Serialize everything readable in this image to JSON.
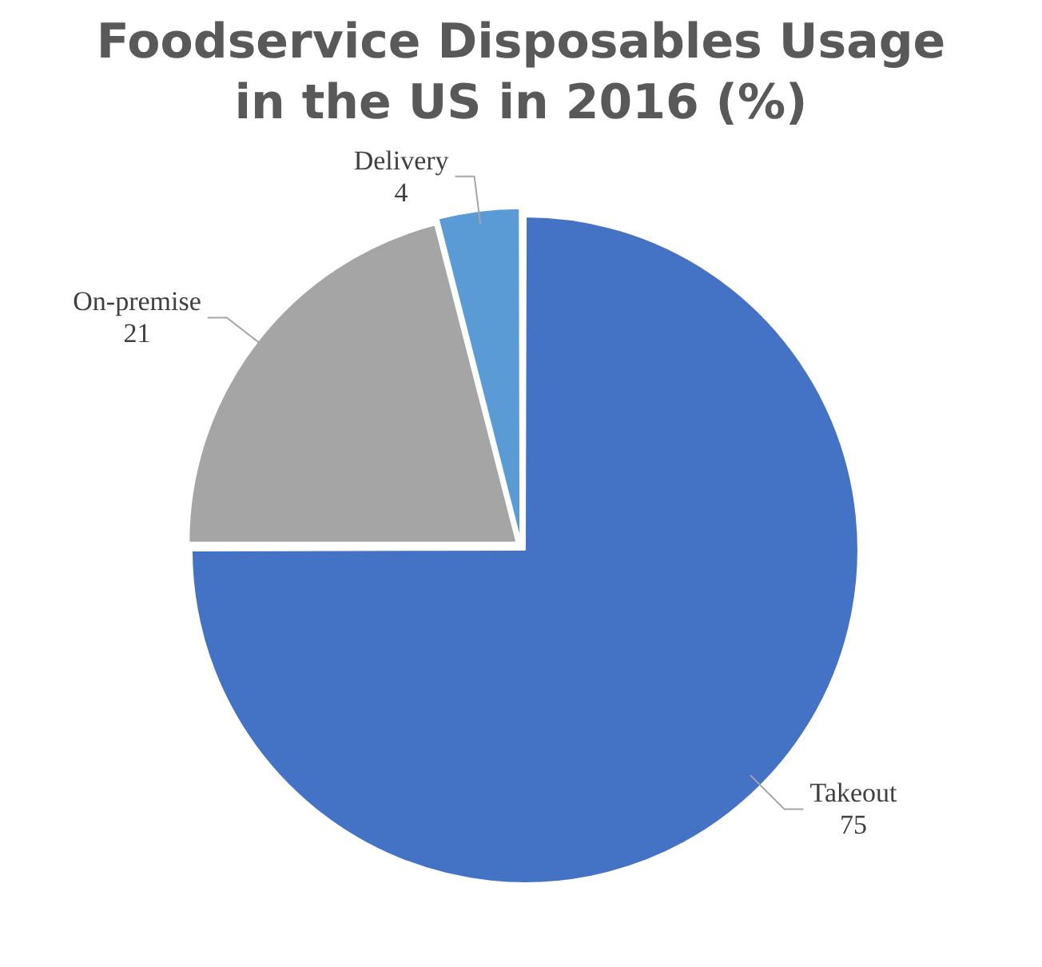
{
  "chart_data": {
    "type": "pie",
    "title": "Foodservice Disposables Usage in the US in 2016 (%)",
    "categories": [
      "Takeout",
      "On-premise",
      "Delivery"
    ],
    "values": [
      75,
      21,
      4
    ],
    "colors": [
      "#4472c4",
      "#a5a5a5",
      "#5b9bd5"
    ],
    "data_labels": true,
    "legend": false
  }
}
